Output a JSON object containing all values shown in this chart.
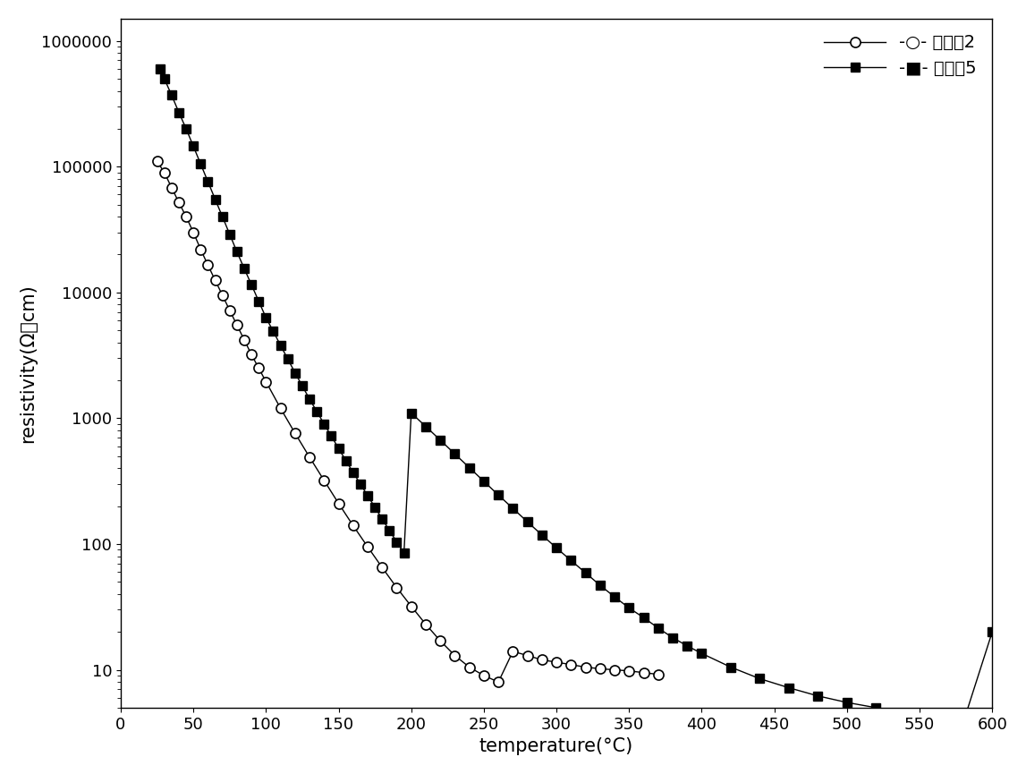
{
  "series1_label": "-○- 对比入2",
  "series2_label": "-■- 实施入5",
  "xlabel": "temperature(°C)",
  "ylabel": "resistivity(Ω・cm)",
  "xlim": [
    0,
    600
  ],
  "ylim_log": [
    5,
    1500000
  ],
  "yticks": [
    10,
    100,
    1000,
    10000,
    100000,
    1000000
  ],
  "xticks": [
    0,
    50,
    100,
    150,
    200,
    250,
    300,
    350,
    400,
    450,
    500,
    550,
    600
  ],
  "series1_x": [
    25,
    30,
    35,
    40,
    45,
    50,
    55,
    60,
    65,
    70,
    75,
    80,
    85,
    90,
    95,
    100,
    110,
    120,
    130,
    140,
    150,
    160,
    170,
    180,
    190,
    200,
    210,
    220,
    230,
    240,
    250,
    260,
    270,
    280,
    290,
    300,
    310,
    320,
    330,
    340,
    350,
    360,
    370
  ],
  "series1_y": [
    110000,
    90000,
    68000,
    52000,
    40000,
    30000,
    22000,
    16500,
    12500,
    9500,
    7200,
    5500,
    4200,
    3200,
    2500,
    1950,
    1200,
    760,
    490,
    320,
    210,
    140,
    95,
    65,
    45,
    32,
    23,
    17,
    13,
    10.5,
    9.0,
    8.0,
    14,
    13,
    12,
    11.5,
    11,
    10.5,
    10.2,
    10.0,
    9.8,
    9.5,
    9.2
  ],
  "series2_x": [
    27,
    30,
    35,
    40,
    45,
    50,
    55,
    60,
    65,
    70,
    75,
    80,
    85,
    90,
    95,
    100,
    105,
    110,
    115,
    120,
    125,
    130,
    135,
    140,
    145,
    150,
    155,
    160,
    165,
    170,
    175,
    180,
    185,
    190,
    195,
    200,
    210,
    220,
    230,
    240,
    250,
    260,
    270,
    280,
    290,
    300,
    310,
    320,
    330,
    340,
    350,
    360,
    370,
    380,
    390,
    400,
    420,
    440,
    460,
    480,
    500,
    520,
    540,
    560,
    580,
    600
  ],
  "series2_y": [
    600000,
    500000,
    370000,
    270000,
    200000,
    145000,
    105000,
    76000,
    55000,
    40000,
    29000,
    21000,
    15500,
    11500,
    8500,
    6300,
    4900,
    3800,
    2950,
    2300,
    1800,
    1420,
    1130,
    900,
    720,
    575,
    460,
    370,
    300,
    242,
    196,
    158,
    128,
    104,
    85,
    1100,
    860,
    670,
    520,
    405,
    315,
    245,
    192,
    150,
    118,
    93,
    74,
    59,
    47,
    38,
    31,
    26,
    21.5,
    18,
    15.5,
    13.5,
    10.5,
    8.5,
    7.2,
    6.2,
    5.5,
    5.0,
    4.5,
    4.1,
    3.8,
    20
  ],
  "marker_size_circle": 8,
  "marker_size_square": 7,
  "line_width": 1.0,
  "font_size_axis_label": 15,
  "font_size_tick": 13,
  "font_size_legend": 14,
  "background_color": "#ffffff"
}
